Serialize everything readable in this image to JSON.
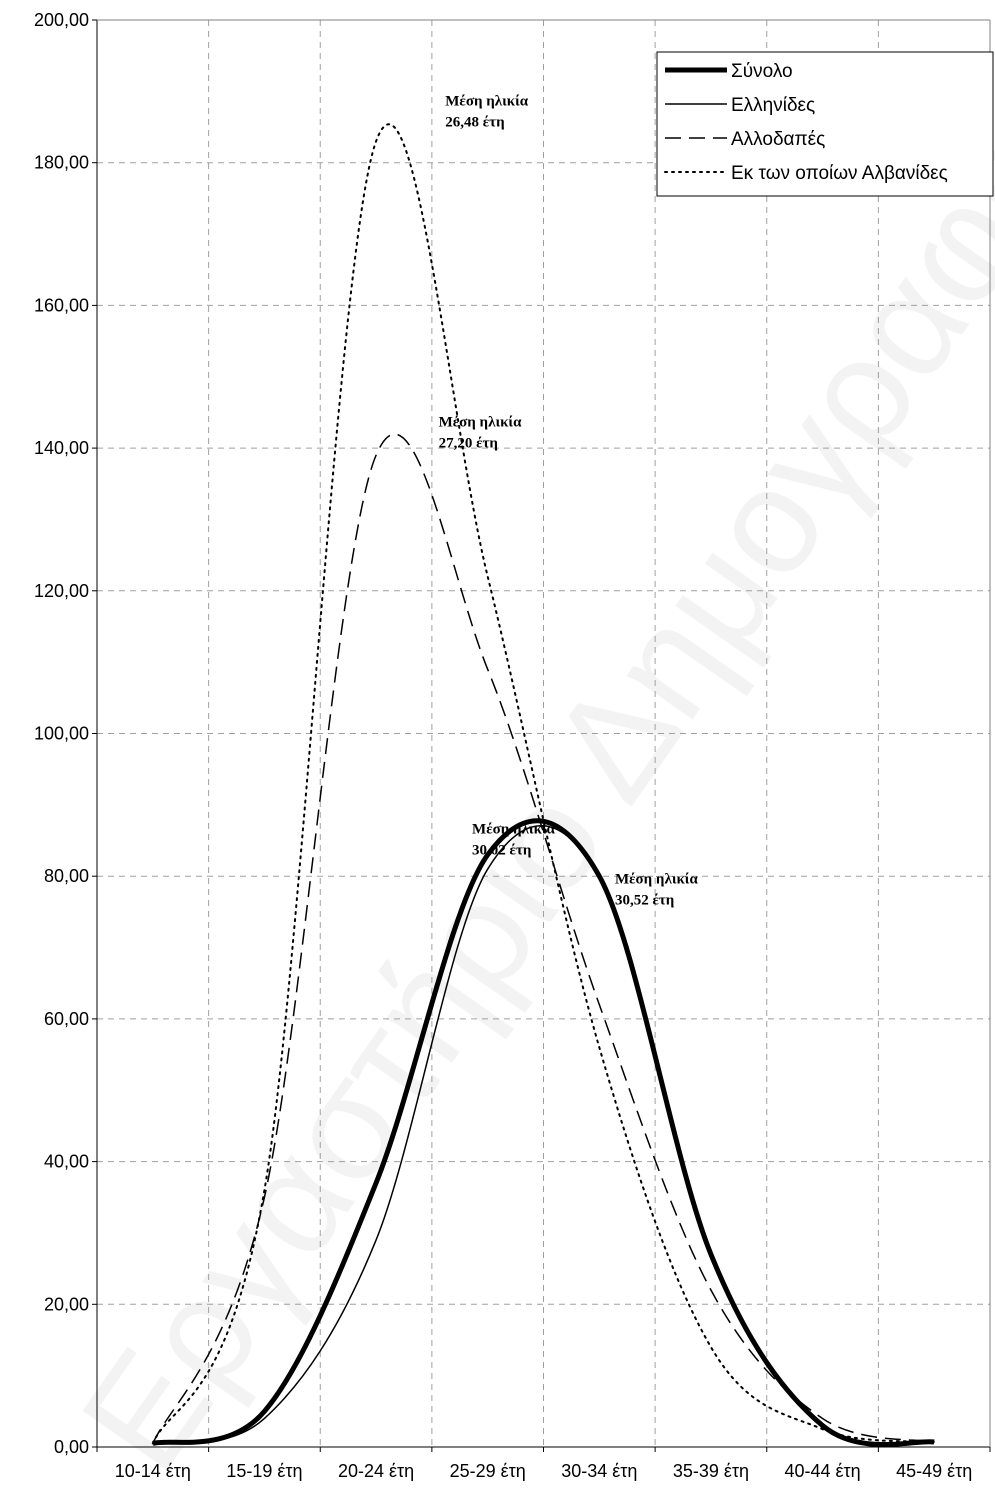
{
  "watermark": "Εργαστήριο Δημογραφικών & Κοινωνικών Αναλύσεων",
  "chart_data": {
    "type": "line",
    "title": "",
    "xlabel": "",
    "ylabel": "",
    "x_tick_labels": [
      "10-14 έτη",
      "15-19 έτη",
      "20-24 έτη",
      "25-29 έτη",
      "30-34 έτη",
      "35-39 έτη",
      "40-44 έτη",
      "45-49 έτη"
    ],
    "x": [
      12.5,
      17.5,
      22.5,
      27.5,
      32.5,
      37.5,
      42.5,
      47.5
    ],
    "xlim": [
      10,
      50
    ],
    "ylim": [
      0,
      200
    ],
    "y_ticks": [
      "0,00",
      "20,00",
      "40,00",
      "60,00",
      "80,00",
      "100,00",
      "120,00",
      "140,00",
      "160,00",
      "180,00",
      "200,00"
    ],
    "grid": true,
    "legend_position": "top-right",
    "series": [
      {
        "name": "Σύνολο",
        "style": "thick",
        "values": [
          0.5,
          5.0,
          37.0,
          83.0,
          80.0,
          27.0,
          3.0,
          0.7
        ]
      },
      {
        "name": "Ελληνίδες",
        "style": "thin",
        "values": [
          0.5,
          4.0,
          29.0,
          81.0,
          80.0,
          27.0,
          3.0,
          0.7
        ]
      },
      {
        "name": "Αλλοδαπές",
        "style": "dashed",
        "values": [
          0.5,
          35.0,
          139.0,
          109.0,
          62.0,
          22.0,
          4.0,
          0.7
        ]
      },
      {
        "name": "Εκ των οποίων Αλβανίδες",
        "style": "dotted",
        "values": [
          0.5,
          36.0,
          183.0,
          122.0,
          56.0,
          14.0,
          2.5,
          0.7
        ]
      }
    ],
    "annotations": [
      {
        "line1": "Μέση ηλικία",
        "line2": "26,48 έτη",
        "x": 25.6,
        "y": 188
      },
      {
        "line1": "Μέση ηλικία",
        "line2": "27,20 έτη",
        "x": 25.3,
        "y": 143
      },
      {
        "line1": "Μέση ηλικία",
        "line2": "30,02 έτη",
        "x": 26.8,
        "y": 86
      },
      {
        "line1": "Μέση ηλικία",
        "line2": "30,52 έτη",
        "x": 33.2,
        "y": 79
      }
    ]
  }
}
